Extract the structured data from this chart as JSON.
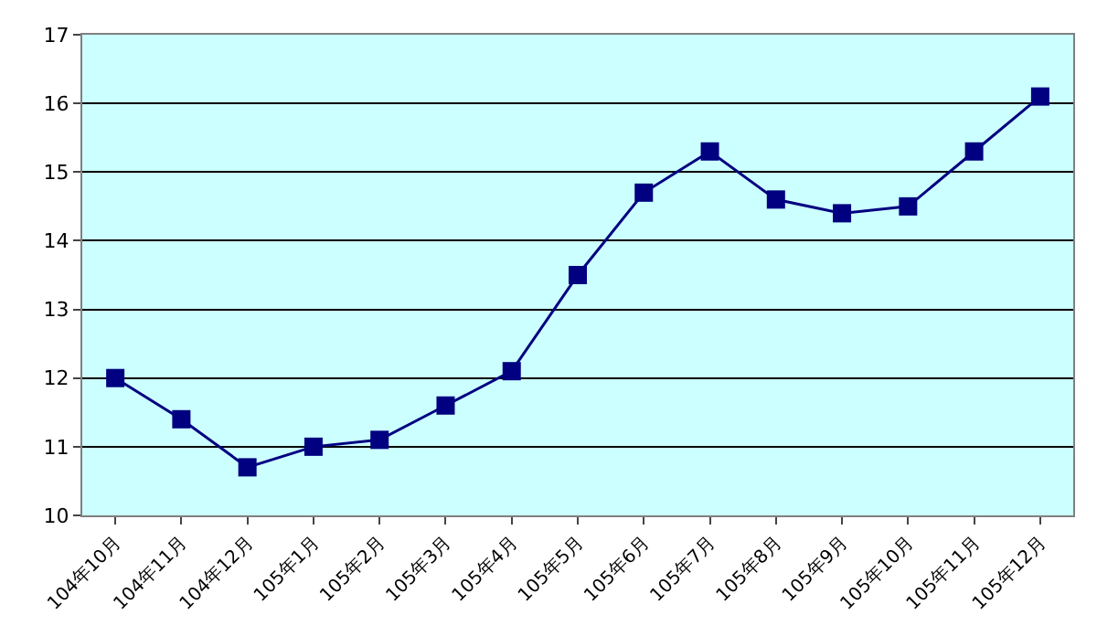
{
  "chart_data": {
    "type": "line",
    "categories": [
      "104年10月",
      "104年11月",
      "104年12月",
      "105年1月",
      "105年2月",
      "105年3月",
      "105年4月",
      "105年5月",
      "105年6月",
      "105年7月",
      "105年8月",
      "105年9月",
      "105年10月",
      "105年11月",
      "105年12月"
    ],
    "series": [
      {
        "color": "#000080",
        "values": [
          12.0,
          11.4,
          10.7,
          11.0,
          11.1,
          11.6,
          12.1,
          13.5,
          14.7,
          15.3,
          14.6,
          14.4,
          14.5,
          15.3,
          16.1
        ]
      }
    ],
    "ylim": [
      10,
      17
    ],
    "yticks": [
      10,
      11,
      12,
      13,
      14,
      15,
      16,
      17
    ],
    "grid": "y",
    "legend": false,
    "marker": "square",
    "line_style": "solid"
  }
}
